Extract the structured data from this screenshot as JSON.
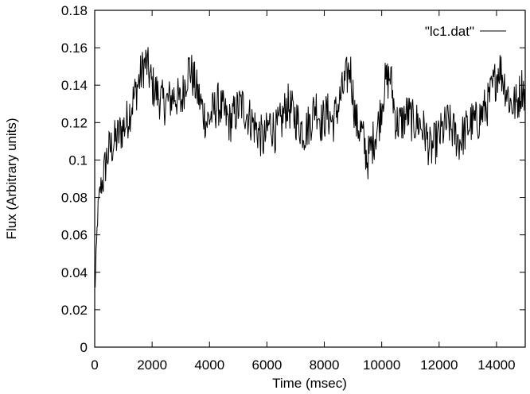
{
  "chart_data": {
    "type": "line",
    "xlabel": "Time (msec)",
    "ylabel": "Flux (Arbitrary units)",
    "xlim": [
      0,
      15000
    ],
    "ylim": [
      0,
      0.18
    ],
    "xticks": [
      0,
      2000,
      4000,
      6000,
      8000,
      10000,
      12000,
      14000
    ],
    "xtick_labels": [
      "0",
      "2000",
      "4000",
      "6000",
      "8000",
      "10000",
      "12000",
      "14000"
    ],
    "yticks": [
      0,
      0.02,
      0.04,
      0.06,
      0.08,
      0.1,
      0.12,
      0.14,
      0.16,
      0.18
    ],
    "ytick_labels": [
      "0",
      "0.02",
      "0.04",
      "0.06",
      "0.08",
      "0.1",
      "0.12",
      "0.14",
      "0.16",
      "0.18"
    ],
    "grid": false,
    "legend_position": "top-right",
    "series": [
      {
        "name": "\"lc1.dat\"",
        "color": "#000000",
        "x": [
          0,
          50,
          100,
          200,
          300,
          400,
          500,
          700,
          900,
          1100,
          1300,
          1500,
          1700,
          1800,
          2000,
          2200,
          2400,
          2600,
          2800,
          3000,
          3200,
          3300,
          3500,
          3700,
          3900,
          4100,
          4300,
          4500,
          4700,
          4900,
          5100,
          5300,
          5500,
          5700,
          5900,
          6100,
          6300,
          6500,
          6700,
          6900,
          7100,
          7300,
          7500,
          7700,
          7900,
          8100,
          8300,
          8500,
          8700,
          8900,
          9100,
          9300,
          9500,
          9700,
          9900,
          10100,
          10300,
          10500,
          10700,
          10900,
          11100,
          11300,
          11500,
          11700,
          11900,
          12100,
          12300,
          12500,
          12700,
          12900,
          13100,
          13300,
          13500,
          13700,
          13900,
          14100,
          14300,
          14500,
          14700,
          14900,
          15000
        ],
        "y": [
          0.03,
          0.045,
          0.07,
          0.085,
          0.09,
          0.1,
          0.105,
          0.11,
          0.115,
          0.12,
          0.13,
          0.14,
          0.15,
          0.152,
          0.14,
          0.135,
          0.13,
          0.132,
          0.135,
          0.13,
          0.145,
          0.15,
          0.14,
          0.13,
          0.12,
          0.125,
          0.13,
          0.125,
          0.12,
          0.125,
          0.13,
          0.125,
          0.12,
          0.115,
          0.11,
          0.12,
          0.115,
          0.12,
          0.13,
          0.125,
          0.12,
          0.115,
          0.12,
          0.13,
          0.12,
          0.125,
          0.12,
          0.13,
          0.14,
          0.15,
          0.12,
          0.115,
          0.1,
          0.11,
          0.12,
          0.14,
          0.145,
          0.12,
          0.12,
          0.125,
          0.12,
          0.12,
          0.115,
          0.105,
          0.11,
          0.115,
          0.12,
          0.115,
          0.11,
          0.115,
          0.12,
          0.12,
          0.125,
          0.13,
          0.14,
          0.15,
          0.14,
          0.13,
          0.13,
          0.14,
          0.135
        ]
      }
    ]
  }
}
